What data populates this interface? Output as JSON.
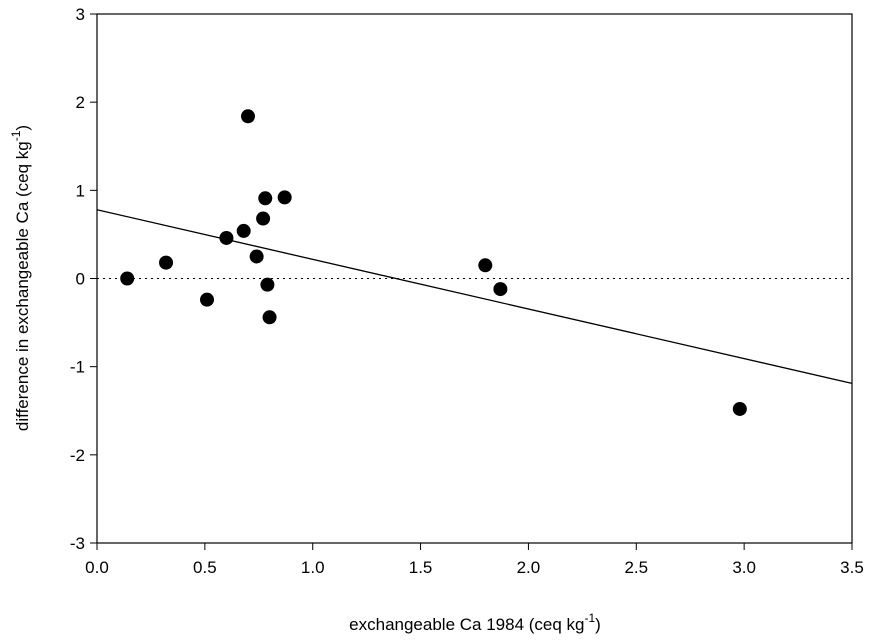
{
  "chart_data": {
    "type": "scatter",
    "x_label": {
      "text": "exchangeable Ca 1984 (ceq kg",
      "superscript": "-1",
      "suffix": ")"
    },
    "y_label": {
      "text": "difference in exchangeable Ca (ceq kg",
      "superscript": "-1",
      "suffix": ")"
    },
    "x": [
      0.14,
      0.32,
      0.51,
      0.6,
      0.68,
      0.7,
      0.74,
      0.77,
      0.78,
      0.79,
      0.8,
      0.87,
      1.8,
      1.87,
      2.98
    ],
    "values": [
      0.0,
      0.18,
      -0.24,
      0.46,
      0.54,
      1.84,
      0.25,
      0.68,
      0.91,
      -0.07,
      -0.44,
      0.92,
      0.15,
      -0.12,
      -1.48
    ],
    "color": "#000000",
    "fit_line": {
      "x": [
        0,
        3.5
      ],
      "y": [
        0.78,
        -1.19
      ]
    },
    "reference_line": 0,
    "xlim": [
      0,
      3.5
    ],
    "xticks": [
      {
        "value": 0,
        "label": "0.0"
      },
      {
        "value": 0.5,
        "label": "0.5"
      },
      {
        "value": 1,
        "label": "1.0"
      },
      {
        "value": 1.5,
        "label": "1.5"
      },
      {
        "value": 2,
        "label": "2.0"
      },
      {
        "value": 2.5,
        "label": "2.5"
      },
      {
        "value": 3,
        "label": "3.0"
      },
      {
        "value": 3.5,
        "label": "3.5"
      }
    ],
    "ylim": [
      -3,
      3
    ],
    "yticks": [
      -3,
      -2,
      -1,
      0,
      1,
      2,
      3
    ]
  }
}
